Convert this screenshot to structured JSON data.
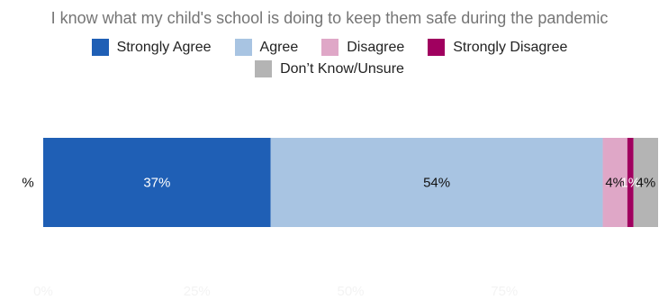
{
  "chart_data": {
    "type": "bar",
    "orientation": "horizontal",
    "stacked": true,
    "title": "I know what my child's school is doing to keep them safe during the pandemic",
    "categories": [
      "%"
    ],
    "series": [
      {
        "name": "Strongly Agree",
        "values": [
          37
        ],
        "label": "37%",
        "color": "#1f5fb5",
        "label_color": "#ffffff"
      },
      {
        "name": "Agree",
        "values": [
          54
        ],
        "label": "54%",
        "color": "#a8c4e2",
        "label_color": "#111111"
      },
      {
        "name": "Disagree",
        "values": [
          4
        ],
        "label": "4%",
        "color": "#dfa7c7",
        "label_color": "#111111"
      },
      {
        "name": "Strongly Disagree",
        "values": [
          1
        ],
        "label": "1%",
        "color": "#a0005f",
        "label_color": "#ffffff"
      },
      {
        "name": "Don’t Know/Unsure",
        "values": [
          4
        ],
        "label": "4%",
        "color": "#b4b4b4",
        "label_color": "#111111"
      }
    ],
    "xlim": [
      0,
      100
    ],
    "x_ticks": [
      "0%",
      "25%",
      "50%",
      "75%"
    ],
    "legend_position": "top",
    "grid": false
  }
}
